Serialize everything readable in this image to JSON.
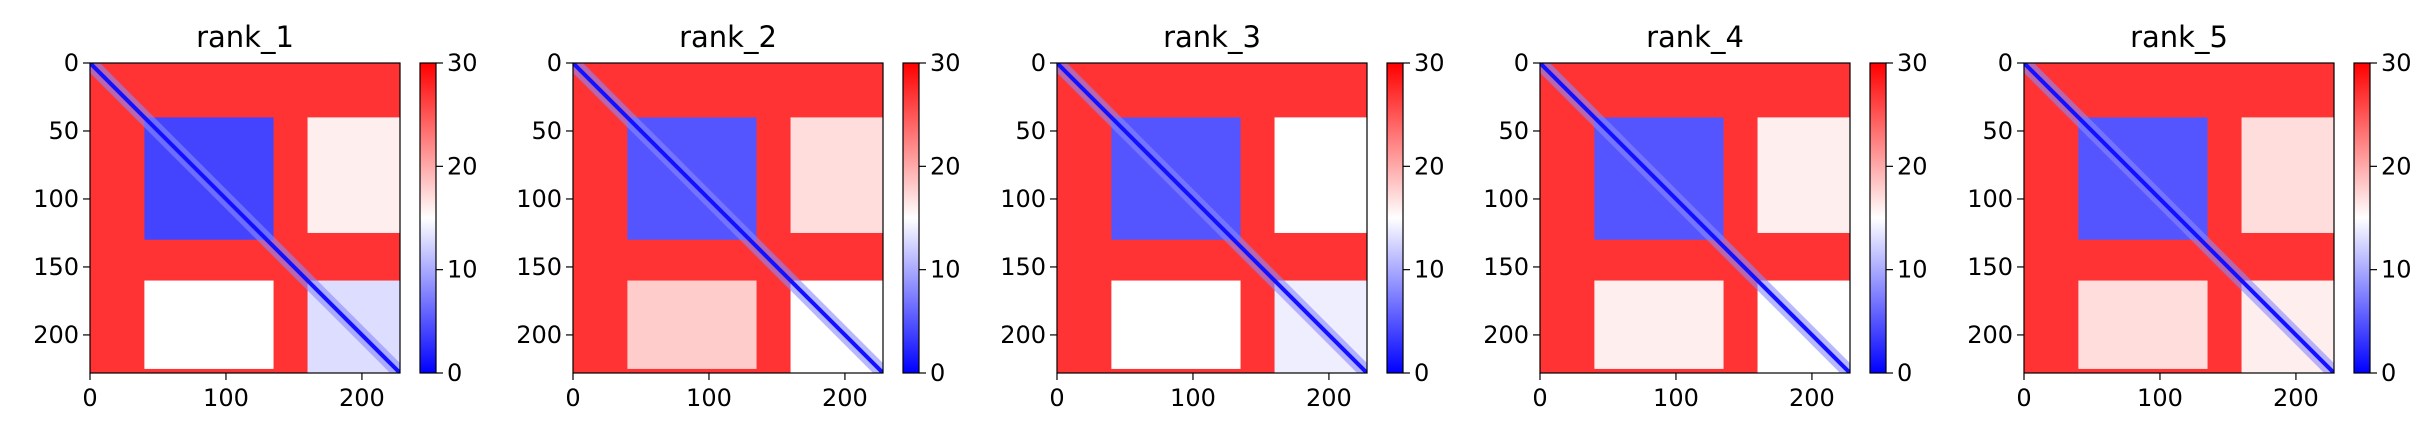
{
  "chart_data": [
    {
      "type": "heatmap",
      "title": "rank_1",
      "xlim": [
        0,
        228
      ],
      "ylim": [
        228,
        0
      ],
      "x_ticks": [
        0,
        100,
        200
      ],
      "y_ticks": [
        0,
        50,
        100,
        150,
        200
      ],
      "colorbar": {
        "range": [
          0,
          30
        ],
        "ticks": [
          0,
          10,
          20,
          30
        ],
        "colormap": "bwr"
      },
      "blocks": [
        {
          "x0": 0,
          "x1": 228,
          "y0": 0,
          "y1": 228,
          "value": 27
        },
        {
          "x0": 40,
          "x1": 135,
          "y0": 40,
          "y1": 130,
          "value": 4
        },
        {
          "x0": 160,
          "x1": 228,
          "y0": 40,
          "y1": 125,
          "value": 16
        },
        {
          "x0": 40,
          "x1": 135,
          "y0": 160,
          "y1": 225,
          "value": 15
        },
        {
          "x0": 160,
          "x1": 228,
          "y0": 160,
          "y1": 228,
          "value": 13
        }
      ],
      "diagonal_value": 1
    },
    {
      "type": "heatmap",
      "title": "rank_2",
      "xlim": [
        0,
        228
      ],
      "ylim": [
        228,
        0
      ],
      "x_ticks": [
        0,
        100,
        200
      ],
      "y_ticks": [
        0,
        50,
        100,
        150,
        200
      ],
      "colorbar": {
        "range": [
          0,
          30
        ],
        "ticks": [
          0,
          10,
          20,
          30
        ],
        "colormap": "bwr"
      },
      "blocks": [
        {
          "x0": 0,
          "x1": 228,
          "y0": 0,
          "y1": 228,
          "value": 27
        },
        {
          "x0": 40,
          "x1": 135,
          "y0": 40,
          "y1": 130,
          "value": 5
        },
        {
          "x0": 160,
          "x1": 228,
          "y0": 40,
          "y1": 125,
          "value": 17
        },
        {
          "x0": 40,
          "x1": 135,
          "y0": 160,
          "y1": 225,
          "value": 18
        },
        {
          "x0": 160,
          "x1": 228,
          "y0": 160,
          "y1": 228,
          "value": 15
        }
      ],
      "diagonal_value": 1
    },
    {
      "type": "heatmap",
      "title": "rank_3",
      "xlim": [
        0,
        228
      ],
      "ylim": [
        228,
        0
      ],
      "x_ticks": [
        0,
        100,
        200
      ],
      "y_ticks": [
        0,
        50,
        100,
        150,
        200
      ],
      "colorbar": {
        "range": [
          0,
          30
        ],
        "ticks": [
          0,
          10,
          20,
          30
        ],
        "colormap": "bwr"
      },
      "blocks": [
        {
          "x0": 0,
          "x1": 228,
          "y0": 0,
          "y1": 228,
          "value": 27
        },
        {
          "x0": 40,
          "x1": 135,
          "y0": 40,
          "y1": 130,
          "value": 5
        },
        {
          "x0": 160,
          "x1": 228,
          "y0": 40,
          "y1": 125,
          "value": 15
        },
        {
          "x0": 40,
          "x1": 135,
          "y0": 160,
          "y1": 225,
          "value": 15
        },
        {
          "x0": 160,
          "x1": 228,
          "y0": 160,
          "y1": 228,
          "value": 14
        }
      ],
      "diagonal_value": 1
    },
    {
      "type": "heatmap",
      "title": "rank_4",
      "xlim": [
        0,
        228
      ],
      "ylim": [
        228,
        0
      ],
      "x_ticks": [
        0,
        100,
        200
      ],
      "y_ticks": [
        0,
        50,
        100,
        150,
        200
      ],
      "colorbar": {
        "range": [
          0,
          30
        ],
        "ticks": [
          0,
          10,
          20,
          30
        ],
        "colormap": "bwr"
      },
      "blocks": [
        {
          "x0": 0,
          "x1": 228,
          "y0": 0,
          "y1": 228,
          "value": 27
        },
        {
          "x0": 40,
          "x1": 135,
          "y0": 40,
          "y1": 130,
          "value": 5
        },
        {
          "x0": 160,
          "x1": 228,
          "y0": 40,
          "y1": 125,
          "value": 16
        },
        {
          "x0": 40,
          "x1": 135,
          "y0": 160,
          "y1": 225,
          "value": 16
        },
        {
          "x0": 160,
          "x1": 228,
          "y0": 160,
          "y1": 228,
          "value": 15
        }
      ],
      "diagonal_value": 1
    },
    {
      "type": "heatmap",
      "title": "rank_5",
      "xlim": [
        0,
        228
      ],
      "ylim": [
        228,
        0
      ],
      "x_ticks": [
        0,
        100,
        200
      ],
      "y_ticks": [
        0,
        50,
        100,
        150,
        200
      ],
      "colorbar": {
        "range": [
          0,
          30
        ],
        "ticks": [
          0,
          10,
          20,
          30
        ],
        "colormap": "bwr"
      },
      "blocks": [
        {
          "x0": 0,
          "x1": 228,
          "y0": 0,
          "y1": 228,
          "value": 27
        },
        {
          "x0": 40,
          "x1": 135,
          "y0": 40,
          "y1": 130,
          "value": 5
        },
        {
          "x0": 160,
          "x1": 228,
          "y0": 40,
          "y1": 125,
          "value": 17
        },
        {
          "x0": 40,
          "x1": 135,
          "y0": 160,
          "y1": 225,
          "value": 17
        },
        {
          "x0": 160,
          "x1": 228,
          "y0": 160,
          "y1": 228,
          "value": 16
        }
      ],
      "diagonal_value": 1
    }
  ],
  "colors": {
    "low": "#0000ff",
    "mid": "#ffffff",
    "high": "#ff0000"
  }
}
